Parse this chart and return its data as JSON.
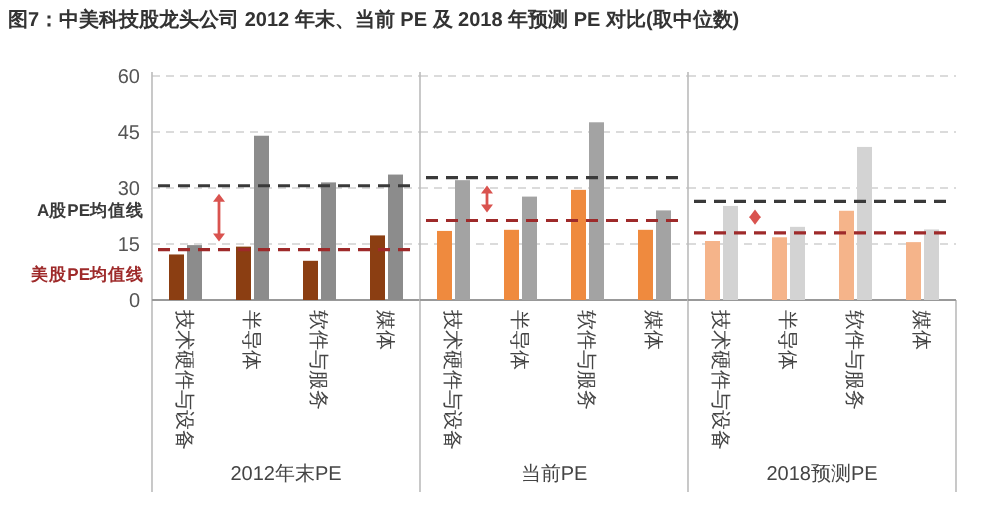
{
  "chart_data": [
    {
      "type": "bar",
      "title": "图7：中美科技股龙头公司 2012 年末、当前 PE 及 2018 年预测 PE 对比(取中位数)",
      "xlabel": "2012年末PE",
      "categories": [
        "技术硬件与设备",
        "半导体",
        "软件与服务",
        "媒体"
      ],
      "series": [
        {
          "color": "#8b3e12",
          "values": [
            12.2,
            14.3,
            10.5,
            17.3
          ]
        },
        {
          "color": "#8c8c8c",
          "values": [
            14.7,
            44,
            31.5,
            33.6
          ]
        }
      ],
      "ylim": [
        0,
        60
      ],
      "yticks": [
        0,
        15,
        30,
        45,
        60
      ],
      "grid": "y",
      "ref_lines": [
        {
          "axis": "y",
          "value": 30.6,
          "label": "A股PE均值线",
          "color": "#3a3a3a",
          "line_style": "dashed"
        },
        {
          "axis": "y",
          "value": 13.5,
          "label": "美股PE均值线",
          "color": "#9e2a2a",
          "line_style": "dashed"
        }
      ]
    },
    {
      "type": "bar",
      "xlabel": "当前PE",
      "categories": [
        "技术硬件与设备",
        "半导体",
        "软件与服务",
        "媒体"
      ],
      "series": [
        {
          "color": "#ef8a3e",
          "values": [
            18.5,
            18.8,
            29.5,
            18.8
          ]
        },
        {
          "color": "#a3a3a3",
          "values": [
            32.1,
            27.7,
            47.6,
            24
          ]
        }
      ],
      "ylim": [
        0,
        60
      ],
      "yticks": [
        0,
        15,
        30,
        45,
        60
      ],
      "grid": "y",
      "tick_labels": "x",
      "ref_lines": [
        {
          "axis": "y",
          "value": 32.8,
          "color": "#3a3a3a",
          "line_style": "dashed"
        },
        {
          "axis": "y",
          "value": 21.3,
          "color": "#9e2a2a",
          "line_style": "dashed"
        }
      ]
    },
    {
      "type": "bar",
      "xlabel": "2018预测PE",
      "categories": [
        "技术硬件与设备",
        "半导体",
        "软件与服务",
        "媒体"
      ],
      "series": [
        {
          "color": "#f5b48a",
          "values": [
            15.8,
            16.8,
            23.9,
            15.5
          ]
        },
        {
          "color": "#d3d3d3",
          "values": [
            25.2,
            19.6,
            41,
            18.9
          ]
        }
      ],
      "ylim": [
        0,
        60
      ],
      "yticks": [
        0,
        15,
        30,
        45,
        60
      ],
      "grid": "y",
      "tick_labels": "x",
      "ref_lines": [
        {
          "axis": "y",
          "value": 26.4,
          "color": "#3a3a3a",
          "line_style": "dashed"
        },
        {
          "axis": "y",
          "value": 18,
          "color": "#9e2a2a",
          "line_style": "dashed"
        }
      ]
    }
  ]
}
